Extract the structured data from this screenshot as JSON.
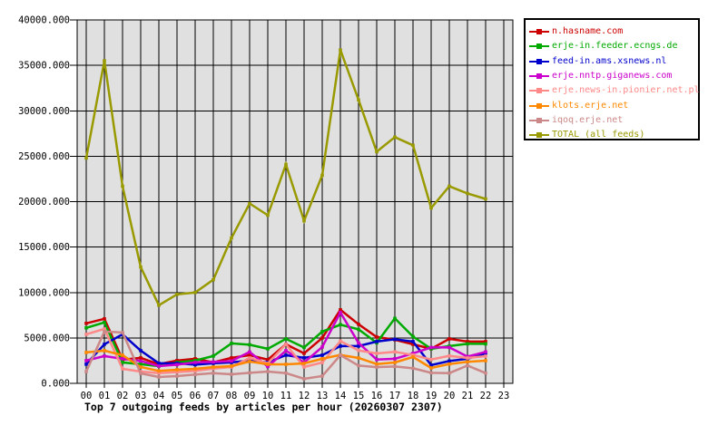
{
  "chart_data": {
    "type": "line",
    "title": "Top 7 outgoing feeds by articles per hour (20260307 2307)",
    "xlabel": "",
    "ylabel": "",
    "ylim": [
      0,
      40000
    ],
    "ytick_step": 5000,
    "grid": true,
    "legend_position": "top-right",
    "plot_bg_color": "#e0e0e0",
    "grid_color": "#000000",
    "x_labels": [
      "00",
      "01",
      "02",
      "03",
      "04",
      "05",
      "06",
      "07",
      "08",
      "09",
      "10",
      "11",
      "12",
      "13",
      "14",
      "15",
      "16",
      "17",
      "18",
      "19",
      "20",
      "21",
      "22",
      "23"
    ],
    "y_tick_values": [
      0,
      5000,
      10000,
      15000,
      20000,
      25000,
      30000,
      35000,
      40000
    ],
    "y_tick_labels": [
      "0.000",
      "5000.000",
      "10000.000",
      "15000.000",
      "20000.000",
      "25000.000",
      "30000.000",
      "35000.000",
      "40000.000"
    ],
    "series": [
      {
        "name": "n.hasname.com",
        "color": "#cc0000",
        "values": [
          6600,
          7100,
          2600,
          2800,
          2100,
          2500,
          2700,
          2300,
          2800,
          3100,
          2600,
          4300,
          3300,
          5000,
          8100,
          6500,
          5100,
          4800,
          4300,
          3800,
          4900,
          4600,
          4600
        ]
      },
      {
        "name": "erje-in.feeder.ecngs.de",
        "color": "#00aa00",
        "values": [
          6100,
          6700,
          2300,
          2100,
          1900,
          2300,
          2500,
          3000,
          4400,
          4250,
          3800,
          4900,
          3950,
          5700,
          6450,
          5950,
          4460,
          7150,
          5150,
          3800,
          4100,
          4350,
          4350
        ]
      },
      {
        "name": "feed-in.ams.xsnews.nl",
        "color": "#0000cc",
        "values": [
          2100,
          4300,
          5400,
          3600,
          2200,
          2200,
          2050,
          2200,
          2300,
          2500,
          2300,
          3100,
          2800,
          3100,
          4100,
          4100,
          4600,
          4850,
          4600,
          2000,
          2450,
          2700,
          3300
        ]
      },
      {
        "name": "erje.nntp.giganews.com",
        "color": "#cc00cc",
        "values": [
          2500,
          3000,
          2700,
          2450,
          1900,
          2050,
          2300,
          2350,
          2450,
          3450,
          1850,
          3600,
          2300,
          4000,
          7800,
          4450,
          2620,
          2700,
          3300,
          3950,
          3960,
          2940,
          3460
        ]
      },
      {
        "name": "erje.news-in.pionier.net.pl",
        "color": "#ff8888",
        "values": [
          5400,
          6000,
          1600,
          1300,
          1130,
          1240,
          1370,
          1630,
          1800,
          2790,
          2190,
          4300,
          1800,
          2290,
          4650,
          3620,
          3290,
          3460,
          3120,
          2620,
          3020,
          2790,
          2990
        ]
      },
      {
        "name": "klots.erje.net",
        "color": "#ff8800",
        "values": [
          3400,
          3600,
          3100,
          1800,
          1370,
          1500,
          1600,
          1800,
          1900,
          2400,
          2090,
          2090,
          2190,
          2700,
          3120,
          2790,
          2120,
          2290,
          2900,
          1700,
          2120,
          2370,
          2490
        ]
      },
      {
        "name": "iqoq.erje.net",
        "color": "#cc8888",
        "values": [
          1300,
          5700,
          5600,
          1100,
          700,
          800,
          970,
          1130,
          1000,
          1160,
          1300,
          1130,
          500,
          800,
          3100,
          1960,
          1790,
          1860,
          1660,
          1160,
          1130,
          1960,
          1130
        ]
      },
      {
        "name": "TOTAL (all feeds)",
        "color": "#999900",
        "values": [
          24800,
          35500,
          21700,
          12800,
          8600,
          9800,
          10000,
          11400,
          16000,
          19800,
          18500,
          24100,
          17900,
          22900,
          36700,
          31200,
          25500,
          27100,
          26200,
          19300,
          21700,
          20900,
          20300
        ]
      }
    ]
  }
}
